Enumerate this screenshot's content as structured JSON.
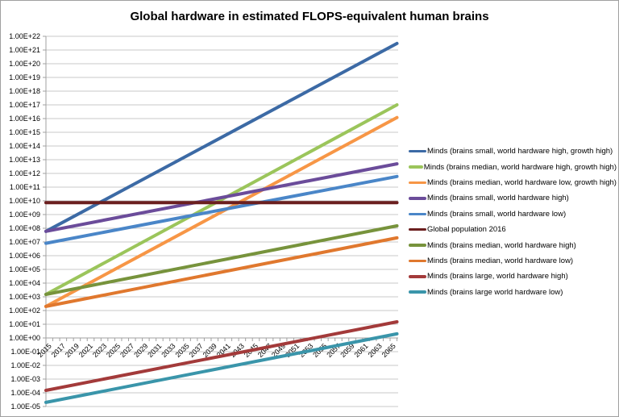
{
  "chart_data": {
    "type": "line",
    "title": "Global hardware in estimated FLOPS-equivalent human brains",
    "xlabel": "",
    "ylabel": "",
    "yscale": "log",
    "ylim": [
      1e-05,
      1e+22
    ],
    "x_range": [
      2015,
      2065
    ],
    "grid": {
      "horizontal": true,
      "vertical": false
    },
    "legend_position": "right",
    "x_axis_crosses_at": 1,
    "x_tick_labels": [
      "2015",
      "2017",
      "2019",
      "2021",
      "2023",
      "2025",
      "2027",
      "2029",
      "2031",
      "2033",
      "2035",
      "2037",
      "2039",
      "2041",
      "2043",
      "2045",
      "2047",
      "2049",
      "2051",
      "2053",
      "2055",
      "2057",
      "2059",
      "2061",
      "2063",
      "2065"
    ],
    "y_tick_labels": [
      "1.00E+22",
      "1.00E+21",
      "1.00E+20",
      "1.00E+19",
      "1.00E+18",
      "1.00E+17",
      "1.00E+16",
      "1.00E+15",
      "1.00E+14",
      "1.00E+13",
      "1.00E+12",
      "1.00E+11",
      "1.00E+10",
      "1.00E+09",
      "1.00E+08",
      "1.00E+07",
      "1.00E+06",
      "1.00E+05",
      "1.00E+04",
      "1.00E+03",
      "1.00E+02",
      "1.00E+01",
      "1.00E+00",
      "1.00E-01",
      "1.00E-02",
      "1.00E-03",
      "1.00E-04",
      "1.00E-05"
    ],
    "series": [
      {
        "name": "Minds (brains small, world hardware high, growth high)",
        "color": "#3C6AA5",
        "x": [
          2015,
          2066
        ],
        "values": [
          60000000.0,
          3e+21
        ]
      },
      {
        "name": "Minds (brains median, world hardware high, growth high)",
        "color": "#9BC55B",
        "x": [
          2015,
          2066
        ],
        "values": [
          1500.0,
          1e+17
        ]
      },
      {
        "name": "Minds (brains median, world hardware low, growth high)",
        "color": "#F79646",
        "x": [
          2015,
          2066
        ],
        "values": [
          200.0,
          1.2e+16
        ]
      },
      {
        "name": "Minds (brains small, world hardware high)",
        "color": "#6B4C9A",
        "x": [
          2015,
          2066
        ],
        "values": [
          60000000.0,
          5000000000000.0
        ]
      },
      {
        "name": "Minds (brains small, world hardware low)",
        "color": "#4A86C8",
        "x": [
          2015,
          2066
        ],
        "values": [
          8000000.0,
          600000000000.0
        ]
      },
      {
        "name": "Global population 2016",
        "color": "#6B1F1F",
        "x": [
          2015,
          2066
        ],
        "values": [
          7400000000.0,
          7400000000.0
        ]
      },
      {
        "name": "Minds (brains median, world hardware high)",
        "color": "#77933C",
        "x": [
          2015,
          2066
        ],
        "values": [
          1500.0,
          150000000.0
        ]
      },
      {
        "name": "Minds (brains median, world hardware low)",
        "color": "#E0782E",
        "x": [
          2015,
          2066
        ],
        "values": [
          200.0,
          20000000.0
        ]
      },
      {
        "name": "Minds (brains large, world hardware high)",
        "color": "#A33A3A",
        "x": [
          2015,
          2066
        ],
        "values": [
          0.00015,
          15.0
        ]
      },
      {
        "name": "Minds (brains large world hardware low)",
        "color": "#3A95AA",
        "x": [
          2015,
          2066
        ],
        "values": [
          2e-05,
          2.0
        ]
      }
    ]
  }
}
